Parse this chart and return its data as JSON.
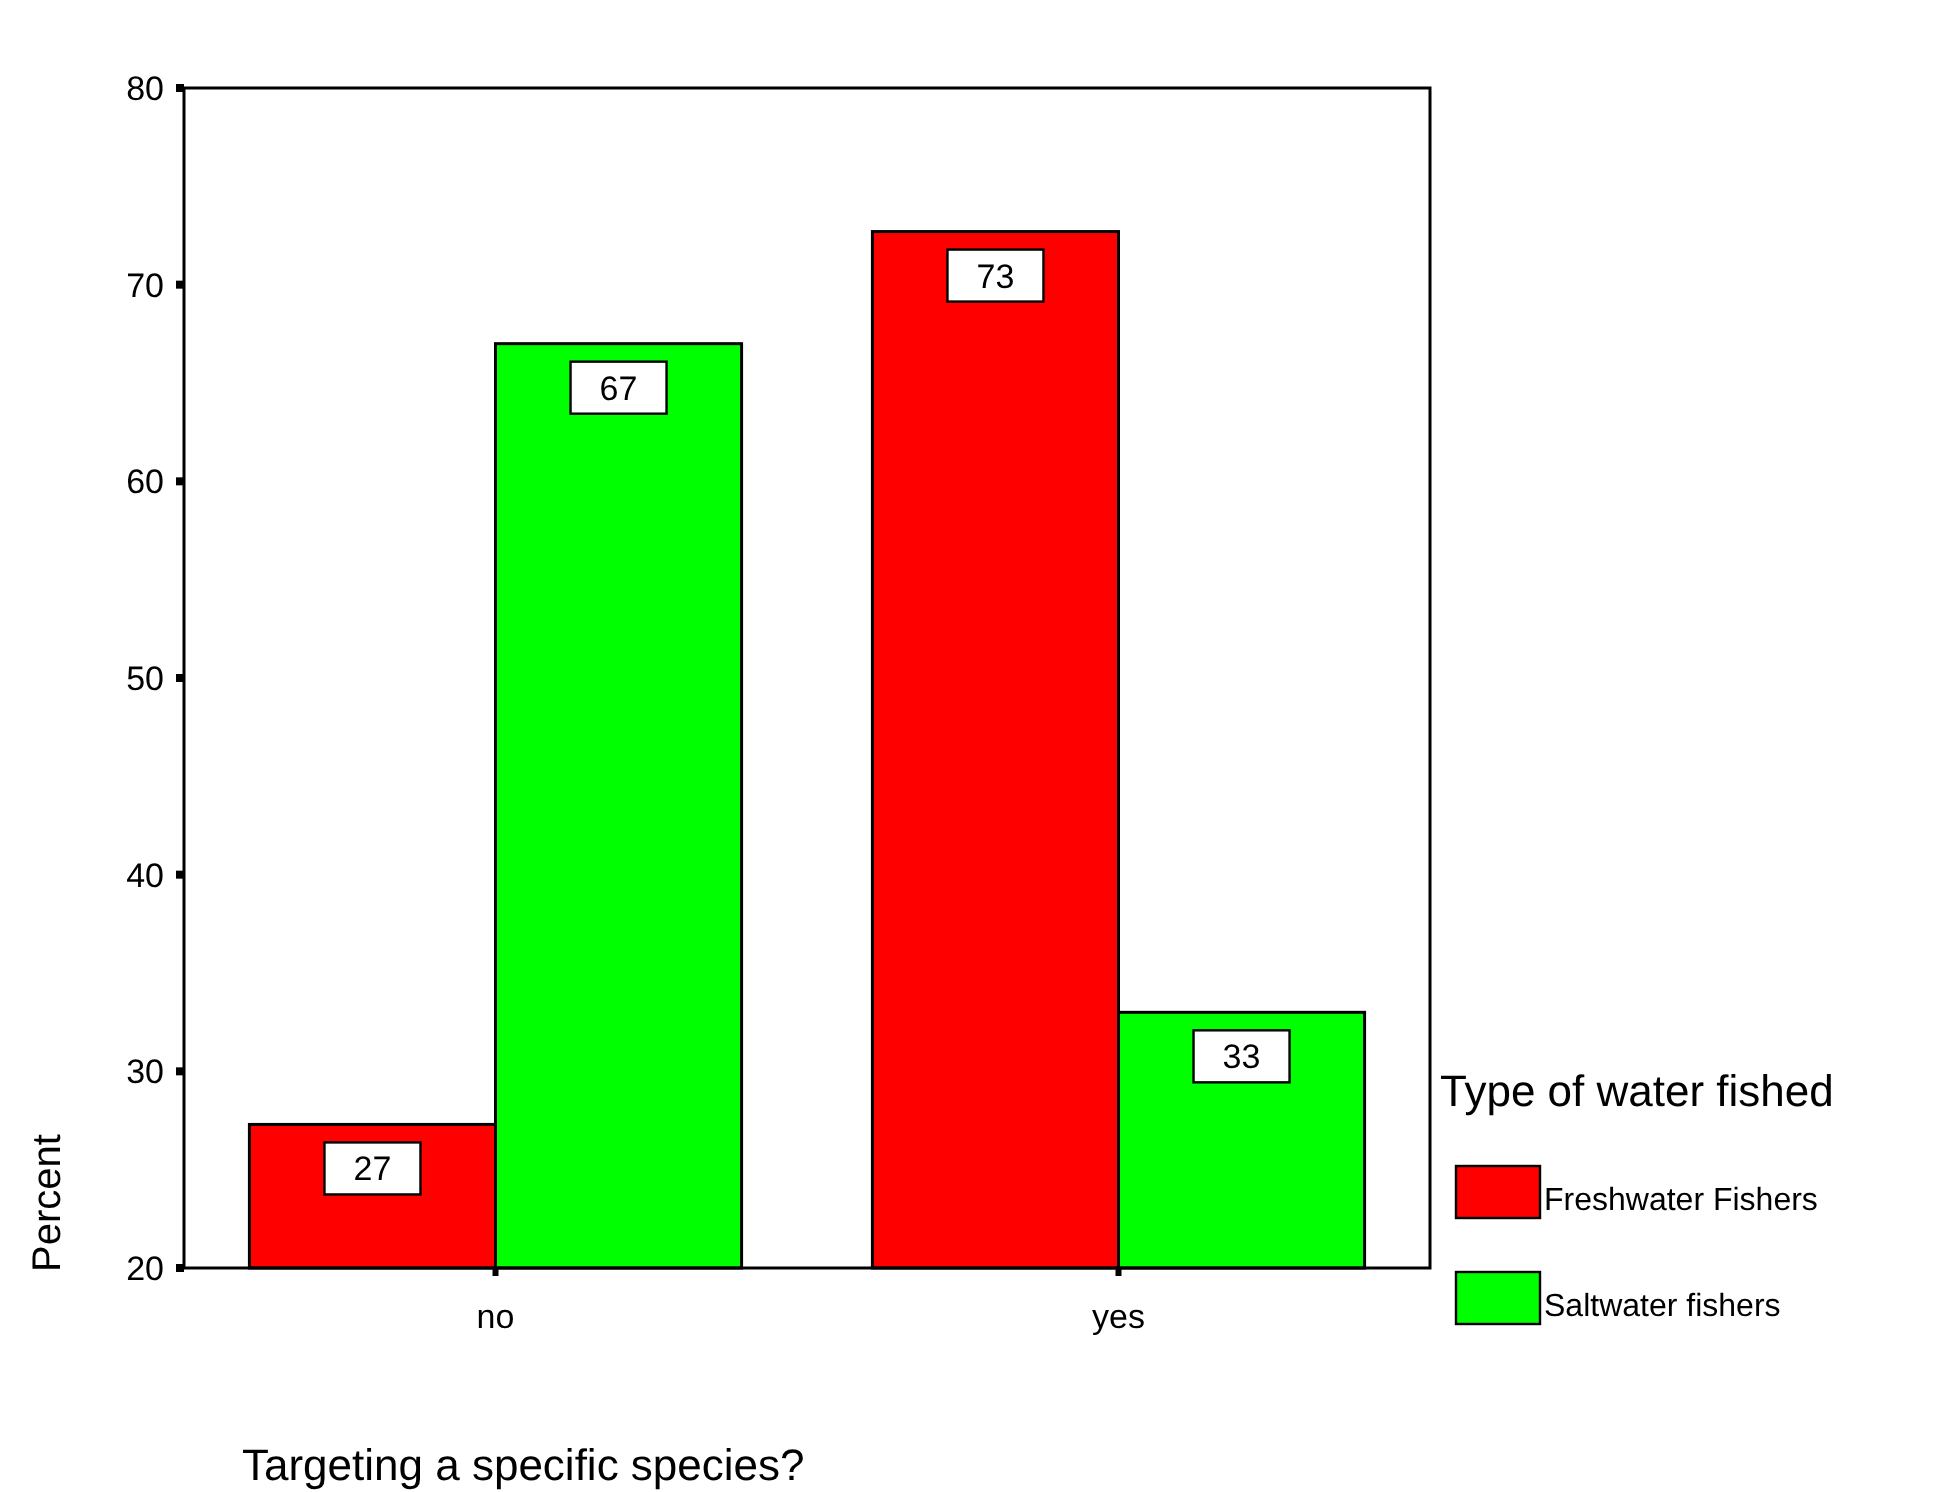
{
  "chart_data": {
    "type": "bar",
    "categories": [
      "no",
      "yes"
    ],
    "series": [
      {
        "name": "Freshwater Fishers",
        "color": "#ff0000",
        "values": [
          27.3,
          72.7
        ],
        "value_labels": [
          "27",
          "73"
        ]
      },
      {
        "name": "Saltwater fishers",
        "color": "#00ff00",
        "values": [
          67.0,
          33.0
        ],
        "value_labels": [
          "67",
          "33"
        ]
      }
    ],
    "ylim": [
      20,
      80
    ],
    "yticks": [
      20,
      30,
      40,
      50,
      60,
      70,
      80
    ],
    "xlabel": "Targeting a specific species?",
    "ylabel": "Percent",
    "legend_title": "Type of water fished",
    "legend": "right",
    "grid": false
  }
}
